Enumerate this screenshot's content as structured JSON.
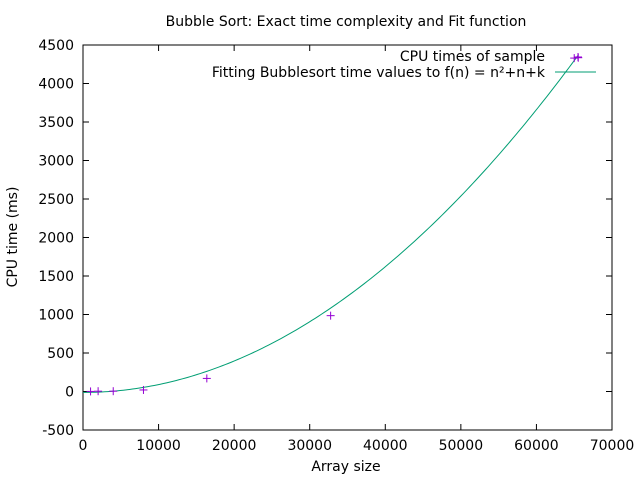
{
  "chart_data": {
    "type": "scatter",
    "title": "Bubble Sort: Exact time complexity and Fit function",
    "xlabel": "Array size",
    "ylabel": "CPU time (ms)",
    "xlim": [
      0,
      70000
    ],
    "ylim": [
      -500,
      4500
    ],
    "xticks": [
      0,
      10000,
      20000,
      30000,
      40000,
      50000,
      60000,
      70000
    ],
    "yticks": [
      -500,
      0,
      500,
      1000,
      1500,
      2000,
      2500,
      3000,
      3500,
      4000,
      4500
    ],
    "grid": false,
    "legend_position": "top-right",
    "series": [
      {
        "name": "CPU times of sample",
        "kind": "points",
        "marker": "plus",
        "color": "#9400d3",
        "x": [
          1000,
          2000,
          4000,
          8000,
          16384,
          32768,
          65000,
          65536
        ],
        "y": [
          1,
          4,
          4,
          20,
          170,
          985,
          4330,
          4335
        ]
      },
      {
        "name": "Fitting Bubblesort time values to f(n) = n²+n+k",
        "kind": "line",
        "color": "#009e73",
        "coefficients": {
          "a": 1.02e-06,
          "b": 0.0,
          "c": -12
        },
        "x_range": [
          0,
          65500
        ]
      }
    ]
  }
}
